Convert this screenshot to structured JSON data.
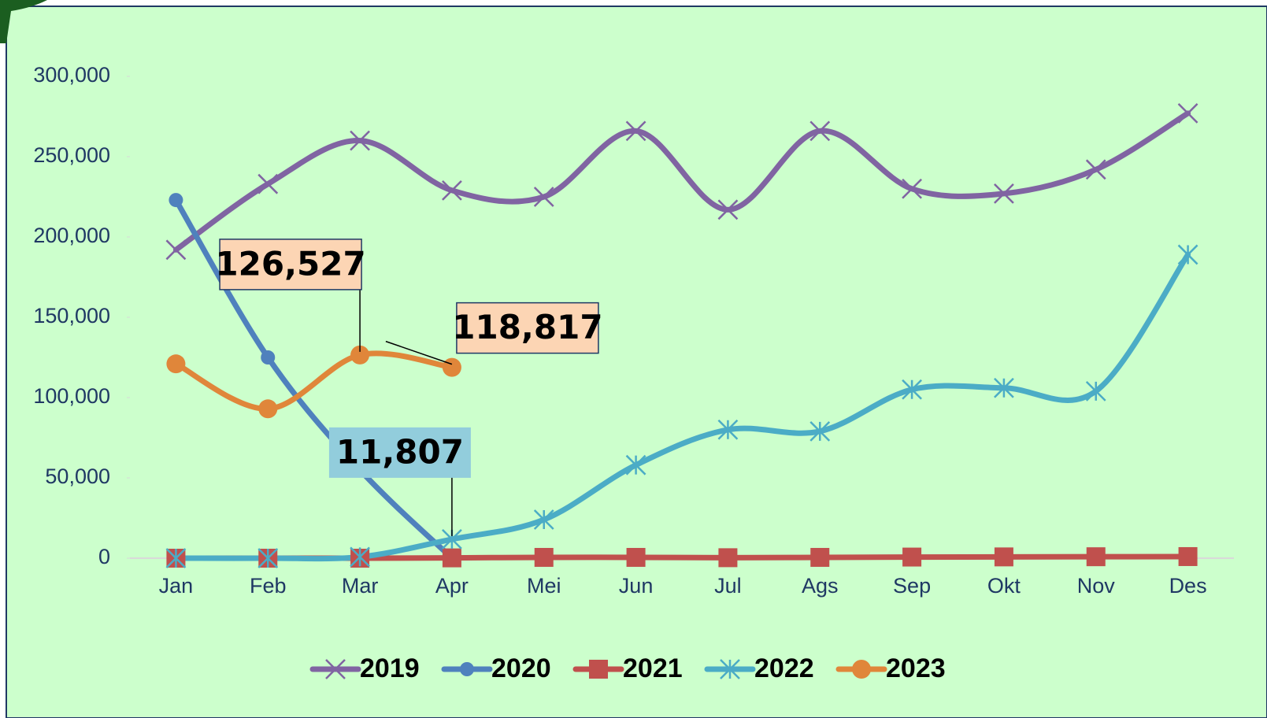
{
  "chart_data": {
    "type": "line",
    "categories": [
      "Jan",
      "Feb",
      "Mar",
      "Apr",
      "Mei",
      "Jun",
      "Jul",
      "Ags",
      "Sep",
      "Okt",
      "Nov",
      "Des"
    ],
    "ylim": [
      0,
      300000
    ],
    "yticks": [
      {
        "value": 0,
        "label": "0"
      },
      {
        "value": 50000,
        "label": "50,000"
      },
      {
        "value": 100000,
        "label": "100,000"
      },
      {
        "value": 150000,
        "label": "150,000"
      },
      {
        "value": 200000,
        "label": "200,000"
      },
      {
        "value": 250000,
        "label": "250,000"
      },
      {
        "value": 300000,
        "label": "300,000"
      }
    ],
    "smooth": true,
    "legend": "bottom",
    "series": [
      {
        "name": "2019",
        "color": "#8064a2",
        "marker": "x",
        "values": [
          192000,
          233000,
          260000,
          229000,
          225000,
          266000,
          217000,
          266000,
          230000,
          227000,
          242000,
          277000
        ]
      },
      {
        "name": "2020",
        "color": "#4f81bd",
        "marker": "circle",
        "values": [
          223000,
          125000,
          55000,
          0,
          null,
          null,
          null,
          null,
          null,
          null,
          null,
          null
        ]
      },
      {
        "name": "2021",
        "color": "#c0504d",
        "marker": "square",
        "values": [
          0,
          0,
          0,
          200,
          500,
          500,
          300,
          500,
          700,
          800,
          900,
          1000
        ]
      },
      {
        "name": "2022",
        "color": "#4bacc6",
        "marker": "star",
        "values": [
          0,
          0,
          800,
          11807,
          24000,
          58000,
          80000,
          79000,
          105000,
          106000,
          104000,
          189000
        ],
        "value_labels": [
          null,
          null,
          null,
          "11,807",
          null,
          null,
          null,
          null,
          null,
          null,
          null,
          null
        ]
      },
      {
        "name": "2023",
        "color": "#e0863a",
        "marker": "bigcircle",
        "values": [
          121000,
          93000,
          126527,
          118817,
          null,
          null,
          null,
          null,
          null,
          null,
          null,
          null
        ],
        "value_labels": [
          null,
          null,
          "126,527",
          "118,817",
          null,
          null,
          null,
          null,
          null,
          null,
          null,
          null
        ]
      }
    ]
  }
}
